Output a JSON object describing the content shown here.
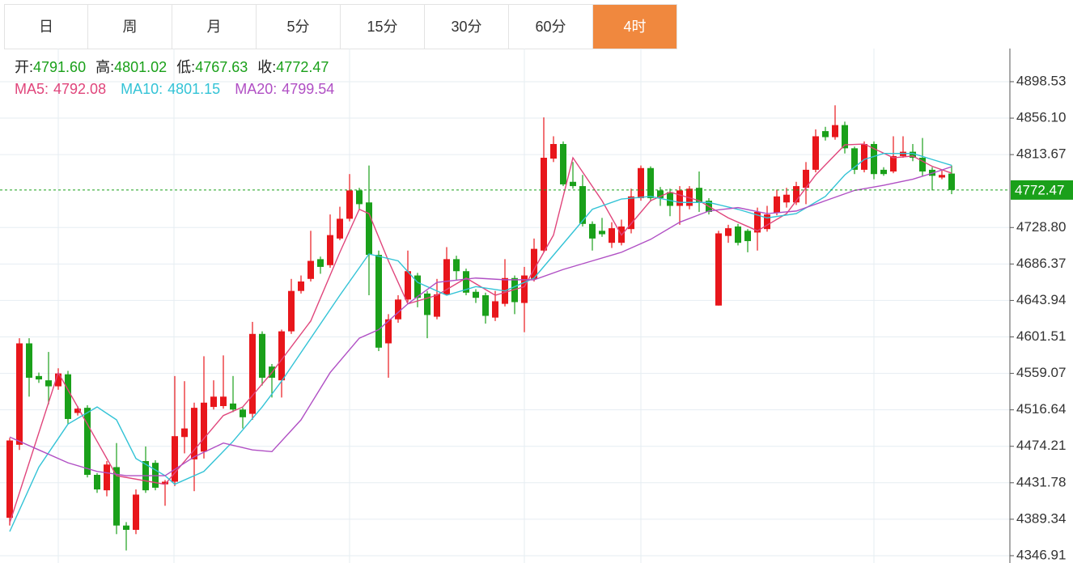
{
  "tabs": [
    "日",
    "周",
    "月",
    "5分",
    "15分",
    "30分",
    "60分",
    "4时"
  ],
  "active_tab": 7,
  "chart_data": {
    "type": "candlestick",
    "ylim": [
      4338.4,
      4937.1
    ],
    "yticks": [
      4898.53,
      {
        "value": 4856.1,
        "label": "4856.10"
      },
      4813.67,
      {
        "value": 4728.8,
        "label": "4728.80"
      },
      4686.37,
      4643.94,
      4601.51,
      4559.07,
      4516.64,
      4474.21,
      4431.78,
      4389.34,
      4346.91
    ],
    "grid": true,
    "up_color": "#e8161b",
    "down_color": "#1aa01a",
    "ohlc_labels": [
      "开:",
      "高:",
      "低:",
      "收:"
    ],
    "candles": {
      "open": [
        4391,
        4476,
        4594,
        4556,
        4551,
        4544,
        4558,
        4513,
        4519,
        4441,
        4423,
        4450,
        4382,
        4377,
        4457,
        4455,
        4430,
        4433,
        4485,
        4459,
        4468,
        4520,
        4521,
        4524,
        4517,
        4512,
        4605,
        4567,
        4551,
        4608,
        4655,
        4669,
        4692,
        4685,
        4716,
        4739,
        4772,
        4758,
        4697,
        4594,
        4622,
        4645,
        4673,
        4652,
        4625,
        4651,
        4692,
        4678,
        4654,
        4650,
        4624,
        4640,
        4670,
        4641,
        4669,
        4702,
        4809,
        4826,
        4782,
        4777,
        4733,
        4725,
        4711,
        4711,
        4727,
        4763,
        4798,
        4772,
        4770,
        4754,
        4754,
        4775,
        4760,
        4638,
        4719,
        4730,
        4725,
        4723,
        4727,
        4746,
        4758,
        4758,
        4775,
        4796,
        4841,
        4834,
        4848,
        4821,
        4796,
        4826,
        4796,
        4794,
        4812,
        4817,
        4810,
        4796,
        4787,
        4791.6
      ],
      "high": [
        4484,
        4600,
        4600,
        4560,
        4584,
        4565,
        4562,
        4521,
        4522,
        4443,
        4457,
        4478,
        4386,
        4424,
        4474,
        4458,
        4435,
        4556,
        4550,
        4525,
        4579,
        4551,
        4580,
        4556,
        4519,
        4619,
        4608,
        4570,
        4610,
        4669,
        4673,
        4725,
        4695,
        4744,
        4753,
        4791,
        4775,
        4801,
        4702,
        4628,
        4650,
        4702,
        4676,
        4655,
        4669,
        4706,
        4696,
        4681,
        4657,
        4653,
        4655,
        4692,
        4673,
        4683,
        4716,
        4857,
        4835,
        4829,
        4805,
        4790,
        4736,
        4740,
        4735,
        4738,
        4774,
        4801,
        4800,
        4776,
        4774,
        4777,
        4777,
        4794,
        4763,
        4725,
        4732,
        4733,
        4727,
        4752,
        4754,
        4773,
        4775,
        4782,
        4805,
        4843,
        4846,
        4871,
        4852,
        4823,
        4829,
        4829,
        4799,
        4835,
        4835,
        4826,
        4833,
        4799,
        4795,
        4801.02
      ],
      "low": [
        4382,
        4470,
        4532,
        4548,
        4523,
        4540,
        4500,
        4510,
        4438,
        4420,
        4416,
        4372,
        4353,
        4372,
        4420,
        4423,
        4405,
        4428,
        4466,
        4422,
        4460,
        4517,
        4518,
        4514,
        4495,
        4505,
        4545,
        4531,
        4531,
        4605,
        4652,
        4666,
        4675,
        4682,
        4714,
        4736,
        4749,
        4650,
        4585,
        4554,
        4618,
        4642,
        4636,
        4600,
        4622,
        4650,
        4668,
        4650,
        4641,
        4617,
        4620,
        4637,
        4628,
        4607,
        4666,
        4700,
        4805,
        4777,
        4774,
        4730,
        4702,
        4718,
        4705,
        4708,
        4722,
        4760,
        4759,
        4754,
        4742,
        4732,
        4750,
        4747,
        4744,
        4638,
        4711,
        4708,
        4700,
        4702,
        4724,
        4743,
        4752,
        4755,
        4756,
        4793,
        4830,
        4831,
        4815,
        4791,
        4793,
        4785,
        4789,
        4792,
        4810,
        4806,
        4788,
        4772,
        4785,
        4767.63
      ],
      "close": [
        4481,
        4594,
        4554,
        4552,
        4544,
        4559,
        4506,
        4518,
        4441,
        4424,
        4453,
        4382,
        4377,
        4418,
        4423,
        4426,
        4433,
        4486,
        4495,
        4519,
        4525,
        4532,
        4532,
        4517,
        4508,
        4605,
        4554,
        4554,
        4608,
        4655,
        4666,
        4690,
        4683,
        4720,
        4739,
        4772,
        4756,
        4697,
        4589,
        4622,
        4645,
        4678,
        4647,
        4627,
        4651,
        4692,
        4678,
        4653,
        4647,
        4626,
        4643,
        4670,
        4642,
        4673,
        4704,
        4810,
        4826,
        4779,
        4777,
        4733,
        4716,
        4721,
        4728,
        4730,
        4765,
        4798,
        4763,
        4763,
        4754,
        4772,
        4774,
        4758,
        4747,
        4722,
        4728,
        4711,
        4713,
        4747,
        4744,
        4765,
        4767,
        4777,
        4796,
        4835,
        4834,
        4848,
        4821,
        4796,
        4826,
        4791,
        4791,
        4812,
        4817,
        4810,
        4794,
        4789,
        4790,
        4772.47
      ],
      "last_labels": {
        "open": "4791.60",
        "high": "4801.02",
        "low": "4767.63",
        "close": "4772.47"
      }
    },
    "series": [
      {
        "name": "MA5:",
        "color": "#e0457b",
        "x": [
          0,
          5,
          11,
          16,
          19,
          22,
          24,
          27,
          31,
          34,
          36,
          37,
          39,
          41,
          44,
          47,
          50,
          53,
          56,
          58,
          61,
          63,
          66,
          68,
          71,
          74,
          77,
          80,
          83,
          86,
          88,
          91,
          93,
          95,
          97
        ],
        "values": [
          4385,
          4560,
          4440,
          4430,
          4470,
          4510,
          4520,
          4560,
          4620,
          4700,
          4750,
          4745,
          4690,
          4640,
          4650,
          4670,
          4650,
          4660,
          4720,
          4810,
          4760,
          4720,
          4760,
          4770,
          4760,
          4740,
          4725,
          4745,
          4790,
          4825,
          4826,
          4810,
          4812,
          4800,
          4792.08
        ]
      },
      {
        "name": "MA10:",
        "color": "#33c3d6",
        "x": [
          0,
          3,
          6,
          9,
          11,
          13,
          16,
          17,
          20,
          23,
          26,
          28,
          31,
          34,
          37,
          40,
          42,
          45,
          48,
          51,
          54,
          57,
          60,
          63,
          66,
          69,
          72,
          75,
          78,
          81,
          84,
          86,
          88,
          90,
          93,
          95,
          97
        ],
        "values": [
          4375,
          4450,
          4500,
          4520,
          4505,
          4460,
          4440,
          4430,
          4445,
          4480,
          4520,
          4550,
          4600,
          4650,
          4698,
          4690,
          4665,
          4650,
          4660,
          4655,
          4670,
          4710,
          4750,
          4762,
          4765,
          4758,
          4758,
          4750,
          4740,
          4745,
          4765,
          4790,
          4808,
          4815,
          4815,
          4808,
          4801.15
        ]
      },
      {
        "name": "MA20:",
        "color": "#b04fc4",
        "x": [
          0,
          3,
          6,
          9,
          12,
          16,
          19,
          22,
          25,
          27,
          30,
          33,
          36,
          38,
          41,
          44,
          48,
          51,
          54,
          57,
          60,
          63,
          66,
          69,
          72,
          75,
          78,
          81,
          84,
          87,
          90,
          93,
          95,
          97
        ],
        "values": [
          4485,
          4470,
          4455,
          4445,
          4440,
          4440,
          4462,
          4478,
          4470,
          4468,
          4505,
          4560,
          4600,
          4610,
          4640,
          4665,
          4670,
          4668,
          4668,
          4680,
          4690,
          4700,
          4715,
          4735,
          4748,
          4752,
          4745,
          4748,
          4760,
          4772,
          4778,
          4785,
          4792,
          4799.54
        ]
      }
    ]
  }
}
